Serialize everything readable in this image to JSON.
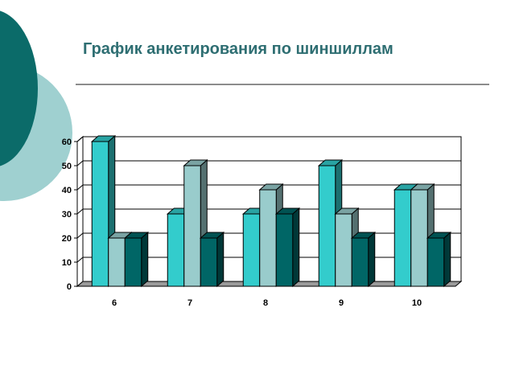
{
  "slide": {
    "title": "График анкетирования по шиншиллам"
  },
  "chart_data": {
    "type": "bar",
    "style": "3d-clustered-column",
    "categories": [
      "6",
      "7",
      "8",
      "9",
      "10"
    ],
    "series": [
      {
        "values": [
          60,
          30,
          30,
          50,
          40
        ],
        "color": "#33cccc"
      },
      {
        "values": [
          20,
          50,
          40,
          30,
          40
        ],
        "color": "#99cccc"
      },
      {
        "values": [
          20,
          20,
          30,
          20,
          20
        ],
        "color": "#006666"
      }
    ],
    "ylim": [
      0,
      60
    ],
    "yticks": [
      0,
      10,
      20,
      30,
      40,
      50,
      60
    ],
    "grid": true,
    "legend": "none",
    "xlabel": "",
    "ylabel": ""
  },
  "colors": {
    "title": "#2e6e72",
    "accent_dark": "#0b6b69",
    "accent_light": "#99cccc"
  }
}
